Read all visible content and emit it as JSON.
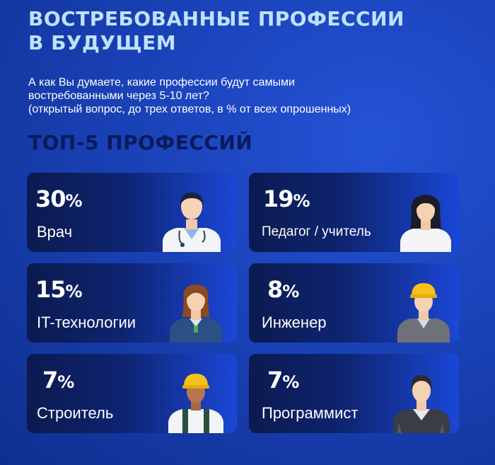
{
  "title": {
    "line1": "ВОСТРЕБОВАННЫЕ ПРОФЕССИИ",
    "line2": "В БУДУЩЕМ"
  },
  "question": {
    "line1": "А как Вы думаете, какие профессии будут самыми",
    "line2": "востребованными через 5-10 лет?",
    "line3": "(открытый вопрос, до трех ответов, в % от всех опрошенных)"
  },
  "section_title": "ТОП-5 ПРОФЕССИЙ",
  "cards": [
    {
      "value": "30",
      "unit": "%",
      "label": "Врач",
      "icon": "doctor-icon"
    },
    {
      "value": "19",
      "unit": "%",
      "label": "Педагог / учитель",
      "icon": "teacher-icon"
    },
    {
      "value": "15",
      "unit": "%",
      "label": "IT-технологии",
      "icon": "it-specialist-icon"
    },
    {
      "value": "8",
      "unit": "%",
      "label": "Инженер",
      "icon": "engineer-icon"
    },
    {
      "value": "7",
      "unit": "%",
      "label": "Строитель",
      "icon": "builder-icon"
    },
    {
      "value": "7",
      "unit": "%",
      "label": "Программист",
      "icon": "programmer-icon"
    }
  ],
  "colors": {
    "title": "#bfe2ff",
    "section_title": "#0b1a5c",
    "background": "#1a42b8"
  }
}
